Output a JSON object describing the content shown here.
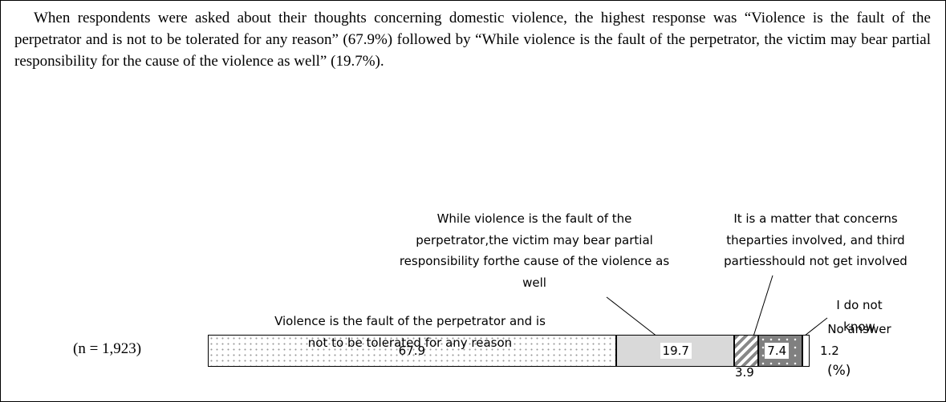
{
  "paragraph": "When respondents were asked about their thoughts concerning domestic violence, the highest response was “Violence is the fault of the perpetrator and is not to be tolerated for any reason” (67.9%) followed by “While violence is the fault of the perpetrator, the victim may bear partial responsibility for the cause of the violence as well” (19.7%).",
  "chart_data": {
    "type": "stacked_bar",
    "orientation": "horizontal",
    "categories": [
      "(n = 1,923)"
    ],
    "unit": "(%)",
    "series": [
      {
        "name": "Violence is the fault of the perpetrator and is not to be tolerated for any reason",
        "color": "#ffffff",
        "values": [
          67.9
        ]
      },
      {
        "name": "While violence is the fault of the perpetrator,the victim may bear partial responsibility forthe cause of the violence as well",
        "color": "#d9d9d9",
        "values": [
          19.7
        ]
      },
      {
        "name": "It is a matter that concerns theparties involved, and third partiesshould not get involved",
        "color": "#ffffff",
        "values": [
          3.9
        ]
      },
      {
        "name": "I do not know",
        "color": "#808080",
        "values": [
          7.4
        ]
      },
      {
        "name": "No answer",
        "color": "#ffffff",
        "values": [
          1.2
        ]
      }
    ]
  }
}
